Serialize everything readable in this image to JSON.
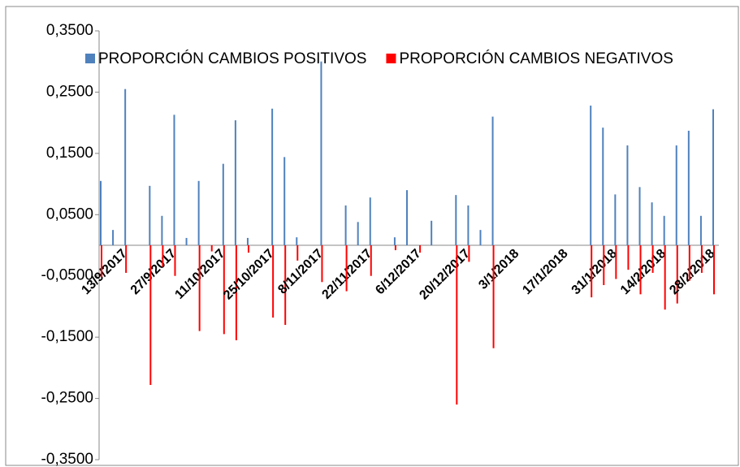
{
  "chart_data": {
    "type": "bar",
    "categories": [
      "13/9/2017",
      null,
      null,
      null,
      "27/9/2017",
      null,
      null,
      null,
      "11/10/2017",
      null,
      null,
      null,
      "25/10/2017",
      null,
      null,
      null,
      "8/11/2017",
      null,
      null,
      null,
      "22/11/2017",
      null,
      null,
      null,
      "6/12/2017",
      null,
      null,
      null,
      "20/12/2017",
      null,
      null,
      null,
      "3/1/2018",
      null,
      null,
      null,
      "17/1/2018",
      null,
      null,
      null,
      "31/1/2018",
      null,
      null,
      null,
      "14/2/2018",
      null,
      null,
      null,
      "28/2/2018",
      null,
      null
    ],
    "series": [
      {
        "name": "PROPORCIÓN CAMBIOS POSITIVOS",
        "color": "#4f81bd",
        "values": [
          0.105,
          0.025,
          0.255,
          null,
          0.097,
          0.048,
          0.213,
          0.012,
          0.105,
          null,
          0.133,
          0.204,
          0.012,
          null,
          0.223,
          0.144,
          0.013,
          null,
          0.3,
          null,
          0.065,
          0.038,
          0.078,
          null,
          0.013,
          0.09,
          null,
          0.04,
          null,
          0.082,
          0.065,
          0.025,
          0.21,
          null,
          null,
          null,
          null,
          null,
          null,
          null,
          0.228,
          0.192,
          0.083,
          0.163,
          0.095,
          0.07,
          0.048,
          0.163,
          0.187,
          0.048,
          0.222
        ]
      },
      {
        "name": "PROPORCIÓN CAMBIOS NEGATIVOS",
        "color": "#ff0000",
        "values": [
          -0.052,
          null,
          -0.045,
          null,
          -0.228,
          -0.035,
          -0.05,
          null,
          -0.14,
          -0.01,
          -0.145,
          -0.155,
          -0.012,
          null,
          -0.118,
          -0.13,
          -0.025,
          null,
          -0.06,
          null,
          -0.075,
          null,
          -0.05,
          null,
          -0.008,
          null,
          -0.012,
          null,
          null,
          -0.26,
          -0.027,
          null,
          -0.168,
          null,
          null,
          null,
          null,
          null,
          null,
          null,
          -0.085,
          -0.065,
          -0.055,
          -0.04,
          -0.08,
          -0.045,
          -0.105,
          -0.095,
          -0.058,
          -0.045,
          -0.08
        ]
      }
    ],
    "ylim": [
      -0.35,
      0.35
    ],
    "yticks": [
      {
        "value": 0.35,
        "label": "0,3500"
      },
      {
        "value": 0.25,
        "label": "0,2500"
      },
      {
        "value": 0.15,
        "label": "0,1500"
      },
      {
        "value": 0.05,
        "label": "0,0500"
      },
      {
        "value": -0.05,
        "label": "-0,0500"
      },
      {
        "value": -0.15,
        "label": "-0,1500"
      },
      {
        "value": -0.25,
        "label": "-0,2500"
      },
      {
        "value": -0.35,
        "label": "-0,3500"
      }
    ],
    "grid": false,
    "legend": "top"
  }
}
